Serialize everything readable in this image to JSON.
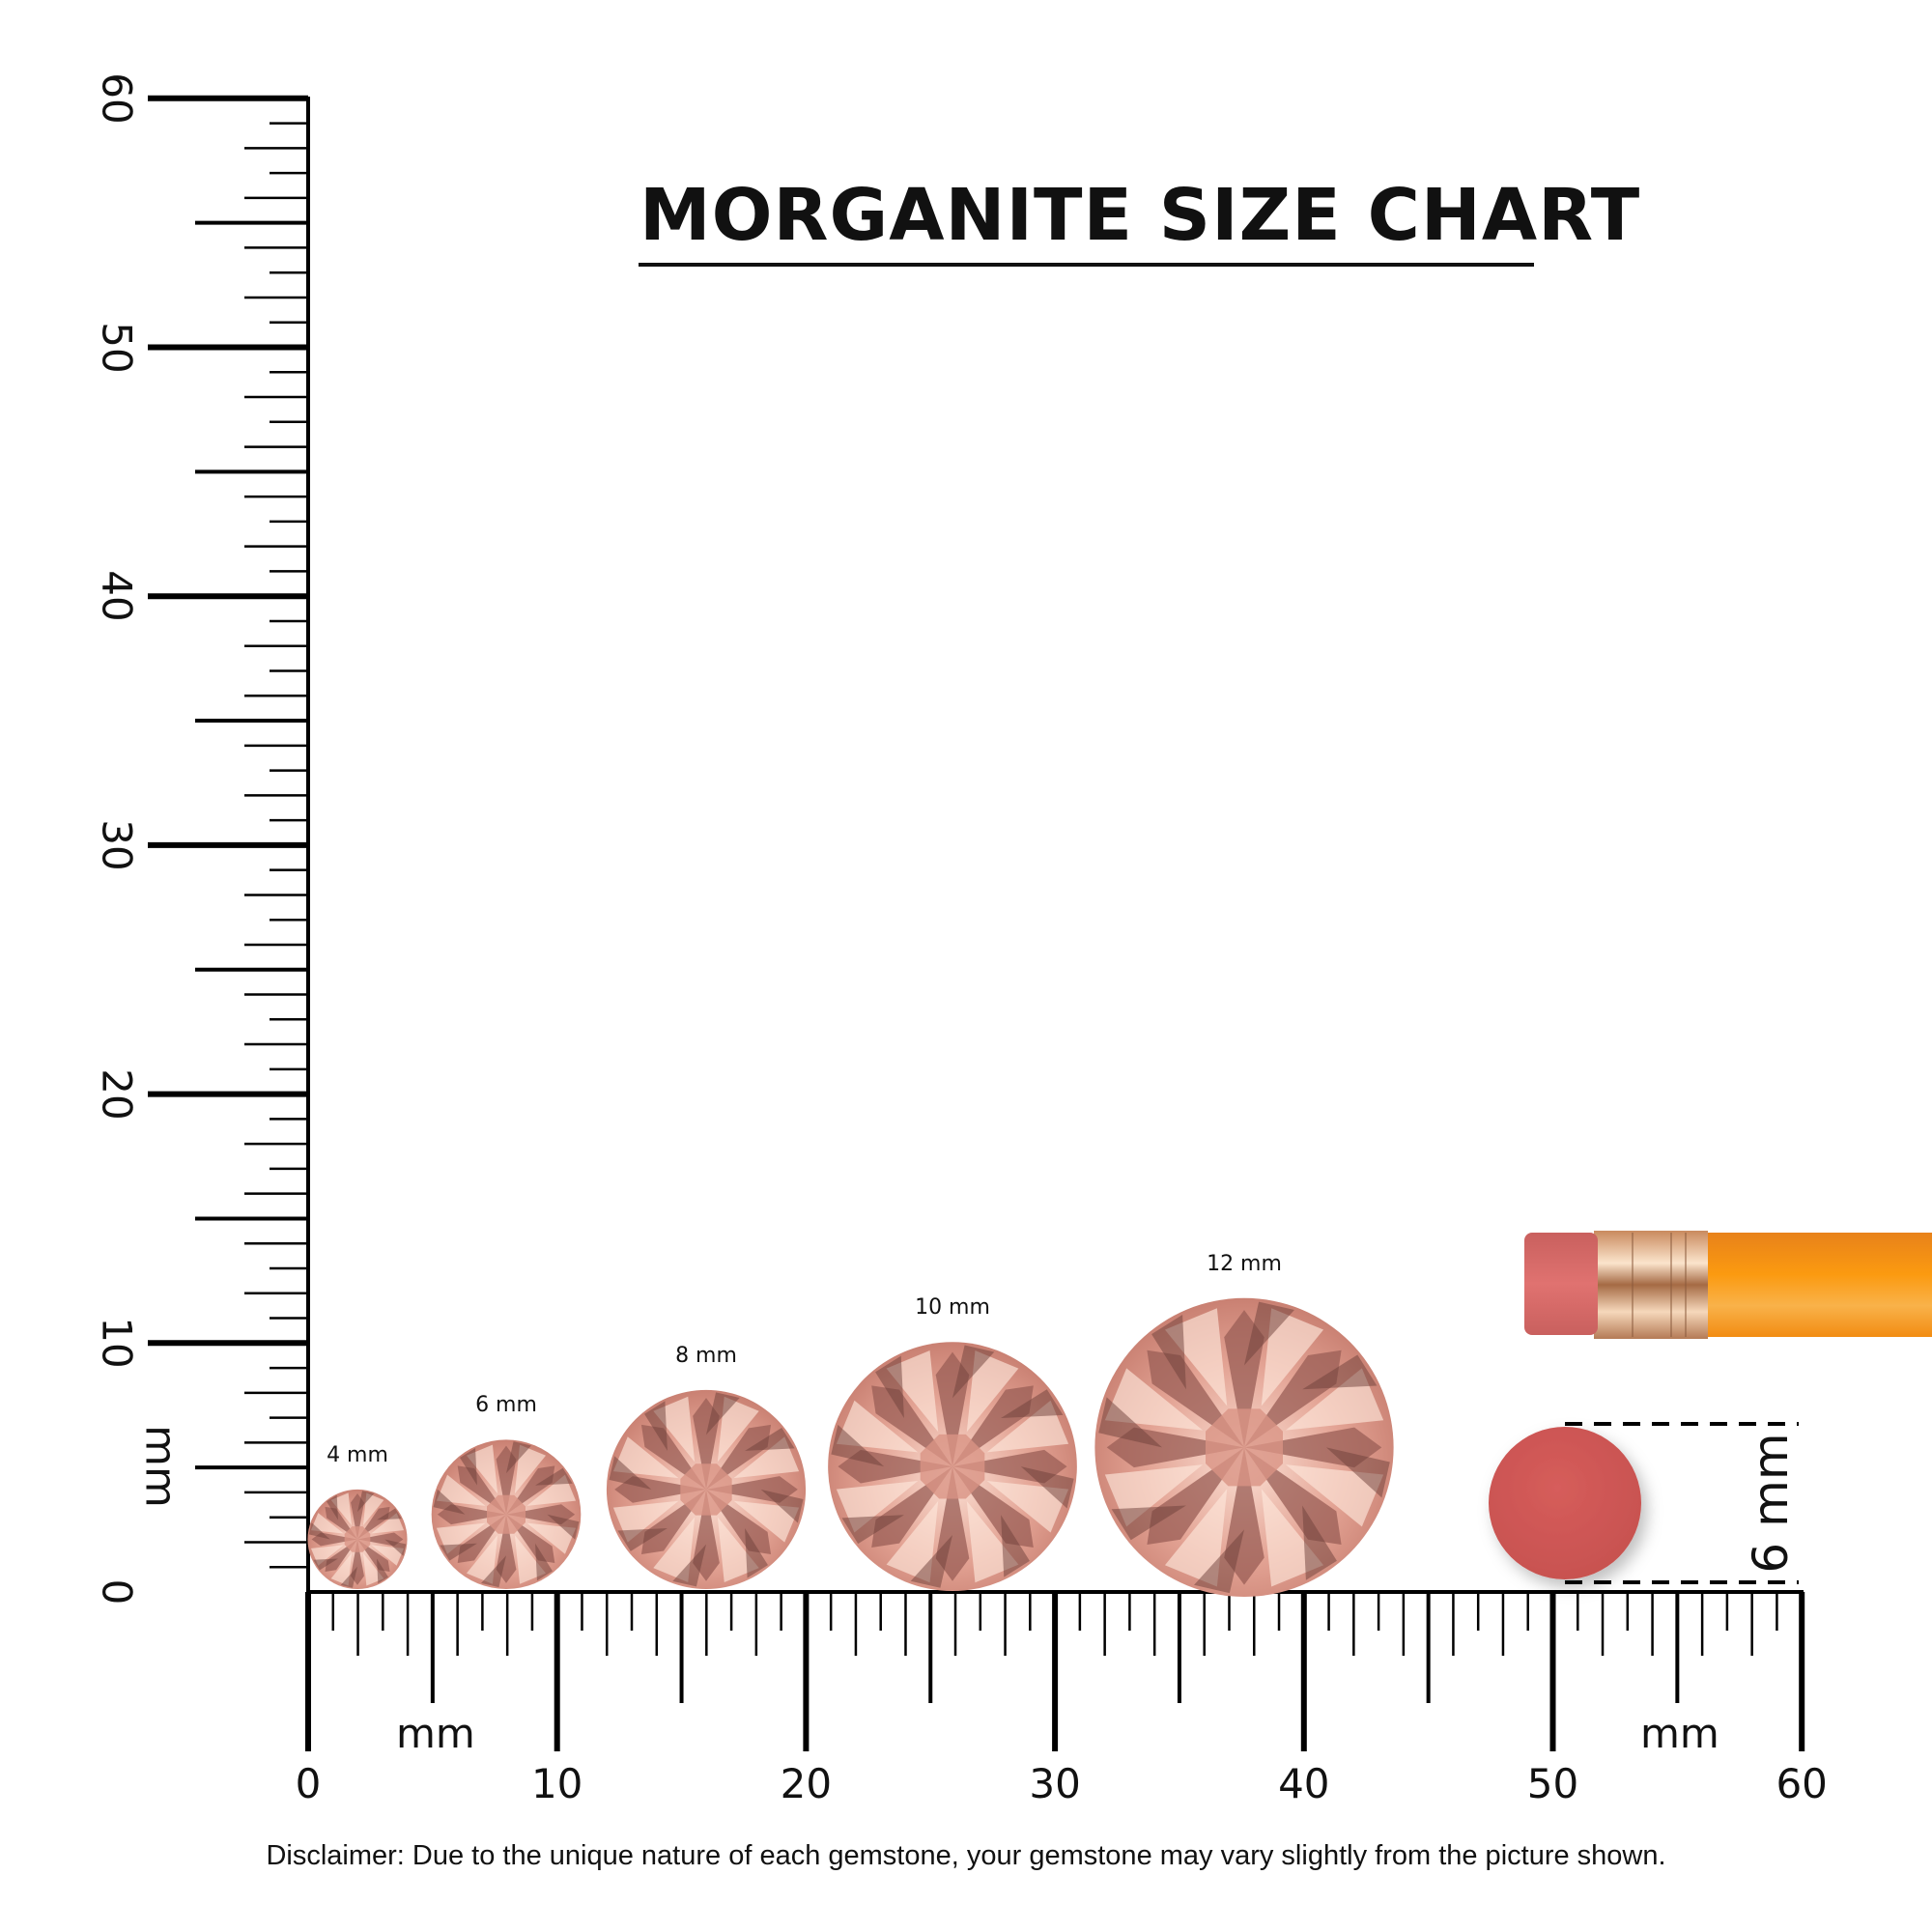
{
  "title": "MORGANITE SIZE CHART",
  "ruler": {
    "unit": "mm",
    "range_mm": [
      0,
      60
    ],
    "x_labels": [
      "0",
      "10",
      "20",
      "30",
      "40",
      "50",
      "60"
    ],
    "y_labels": [
      "0",
      "10",
      "20",
      "30",
      "40",
      "50",
      "60"
    ]
  },
  "gems": [
    {
      "label": "4 mm",
      "size_mm": 4
    },
    {
      "label": "6 mm",
      "size_mm": 6
    },
    {
      "label": "8 mm",
      "size_mm": 8
    },
    {
      "label": "10 mm",
      "size_mm": 10
    },
    {
      "label": "12 mm",
      "size_mm": 12
    }
  ],
  "reference": {
    "label": "6 mm",
    "size_mm": 6,
    "object": "pencil eraser"
  },
  "colors": {
    "gem": "#e3a394",
    "gem_dark": "#7a4a44",
    "eraser": "#d05a58",
    "pencil": "#f7941d",
    "ferrule": "#d9a47a"
  },
  "disclaimer": "Disclaimer: Due to the unique nature of each gemstone, your gemstone may vary slightly from the picture shown."
}
